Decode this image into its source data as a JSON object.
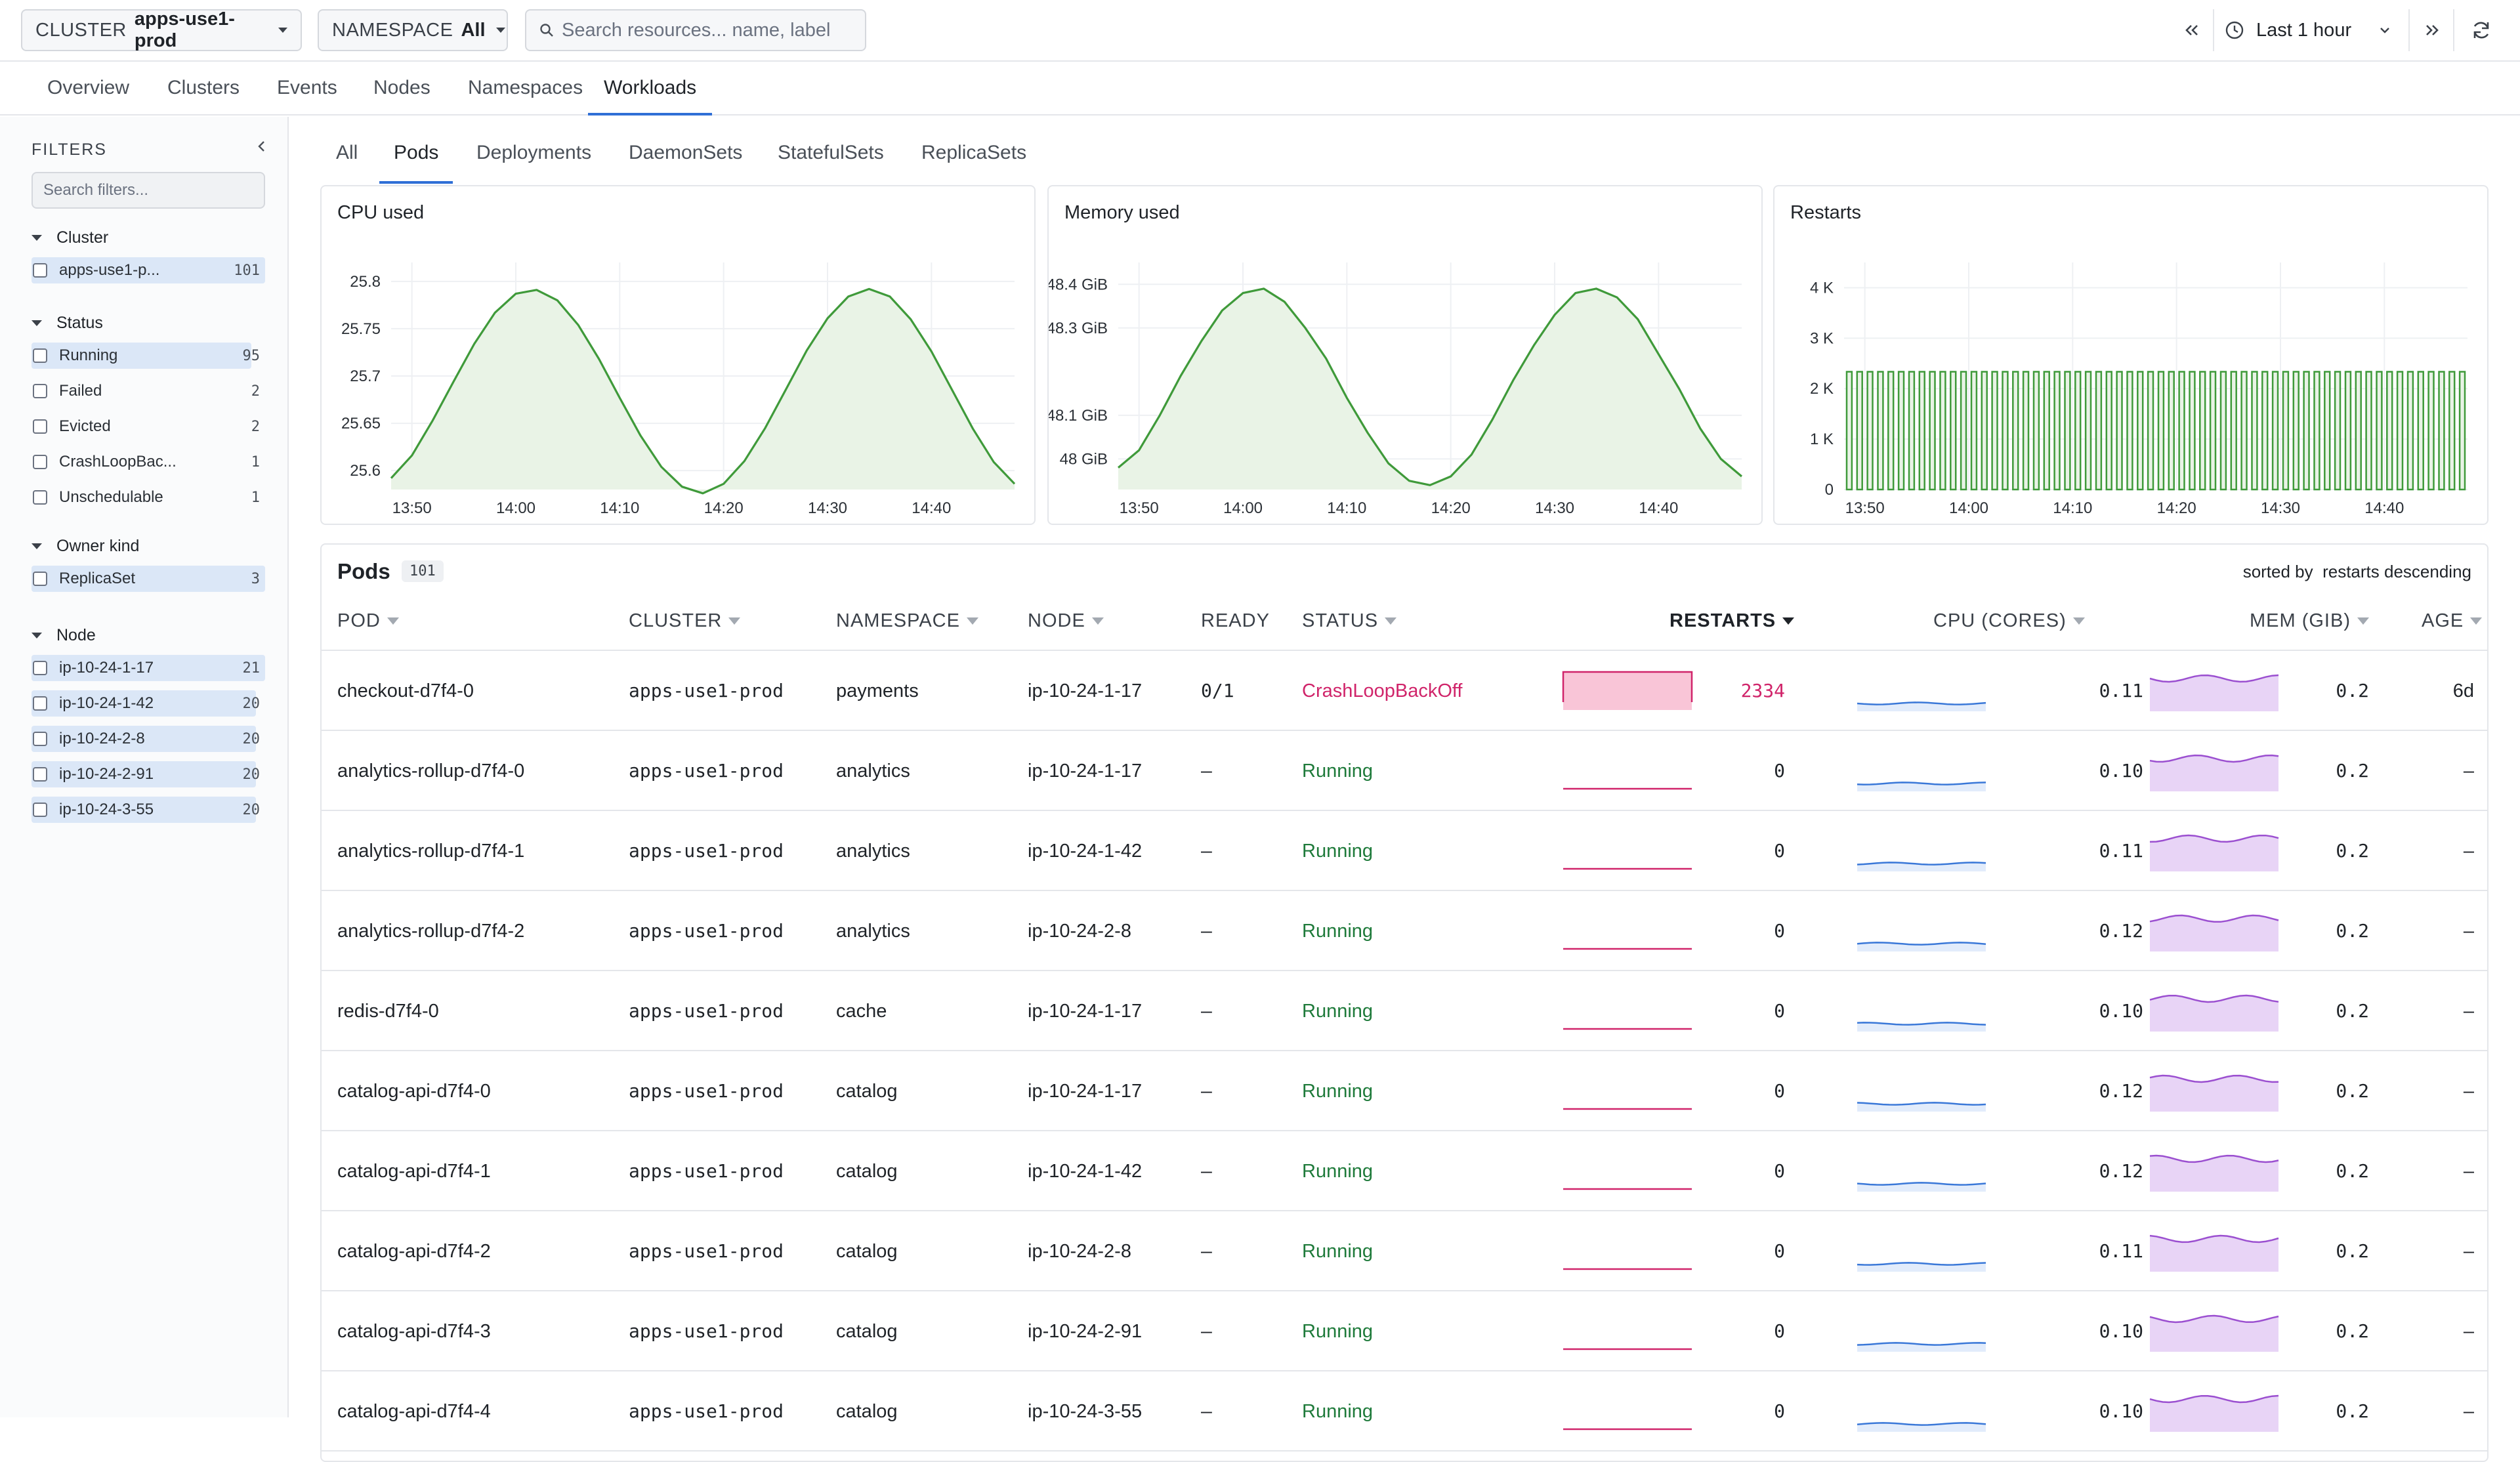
{
  "topbar": {
    "cluster_key": "CLUSTER",
    "cluster_value": "apps-use1-prod",
    "namespace_key": "NAMESPACE",
    "namespace_value": "All",
    "search_placeholder": "Search resources... name, label",
    "time_range": "Last 1 hour"
  },
  "nav": {
    "tabs": [
      "Overview",
      "Clusters",
      "Events",
      "Nodes",
      "Namespaces",
      "Workloads"
    ],
    "active": "Workloads"
  },
  "sidebar": {
    "title": "FILTERS",
    "search_placeholder": "Search filters...",
    "groups": [
      {
        "title": "Cluster",
        "items": [
          {
            "label": "apps-use1-p...",
            "count": "101",
            "fraction": 1.0
          }
        ]
      },
      {
        "title": "Status",
        "items": [
          {
            "label": "Running",
            "count": "95",
            "fraction": 0.94
          },
          {
            "label": "Failed",
            "count": "2",
            "fraction": 0.0
          },
          {
            "label": "Evicted",
            "count": "2",
            "fraction": 0.0
          },
          {
            "label": "CrashLoopBac...",
            "count": "1",
            "fraction": 0.0
          },
          {
            "label": "Unschedulable",
            "count": "1",
            "fraction": 0.0
          }
        ]
      },
      {
        "title": "Owner kind",
        "items": [
          {
            "label": "ReplicaSet",
            "count": "3",
            "fraction": 1.0
          }
        ]
      },
      {
        "title": "Node",
        "items": [
          {
            "label": "ip-10-24-1-17",
            "count": "21",
            "fraction": 1.0
          },
          {
            "label": "ip-10-24-1-42",
            "count": "20",
            "fraction": 0.96
          },
          {
            "label": "ip-10-24-2-8",
            "count": "20",
            "fraction": 0.96
          },
          {
            "label": "ip-10-24-2-91",
            "count": "20",
            "fraction": 0.96
          },
          {
            "label": "ip-10-24-3-55",
            "count": "20",
            "fraction": 0.96
          }
        ]
      }
    ]
  },
  "subtabs": {
    "items": [
      "All",
      "Pods",
      "Deployments",
      "DaemonSets",
      "StatefulSets",
      "ReplicaSets"
    ],
    "active": "Pods"
  },
  "chart_data": [
    {
      "type": "area",
      "title": "CPU used",
      "x_ticks": [
        "13:50",
        "14:00",
        "14:10",
        "14:20",
        "14:30",
        "14:40"
      ],
      "y_ticks": [
        "25.6",
        "25.65",
        "25.7",
        "25.75",
        "25.8"
      ],
      "ylim": [
        25.58,
        25.82
      ],
      "x": [
        "13:48",
        "13:50",
        "13:52",
        "13:54",
        "13:56",
        "13:58",
        "14:00",
        "14:02",
        "14:04",
        "14:06",
        "14:08",
        "14:10",
        "14:12",
        "14:14",
        "14:16",
        "14:18",
        "14:20",
        "14:22",
        "14:24",
        "14:26",
        "14:28",
        "14:30",
        "14:32",
        "14:34",
        "14:36",
        "14:38",
        "14:40",
        "14:42",
        "14:44",
        "14:46",
        "14:48"
      ],
      "values": [
        25.592,
        25.616,
        25.653,
        25.694,
        25.734,
        25.767,
        25.787,
        25.791,
        25.78,
        25.754,
        25.718,
        25.677,
        25.637,
        25.604,
        25.583,
        25.576,
        25.586,
        25.61,
        25.645,
        25.686,
        25.727,
        25.761,
        25.784,
        25.792,
        25.784,
        25.76,
        25.726,
        25.685,
        25.644,
        25.609,
        25.586
      ],
      "color": "#3f9a3a",
      "grid": true
    },
    {
      "type": "area",
      "title": "Memory used",
      "x_ticks": [
        "13:50",
        "14:00",
        "14:10",
        "14:20",
        "14:30",
        "14:40"
      ],
      "y_ticks": [
        "48 GiB",
        "48.1 GiB",
        "48.3 GiB",
        "48.4 GiB"
      ],
      "ylim": [
        47.93,
        48.45
      ],
      "x": [
        "13:48",
        "13:50",
        "13:52",
        "13:54",
        "13:56",
        "13:58",
        "14:00",
        "14:02",
        "14:04",
        "14:06",
        "14:08",
        "14:10",
        "14:12",
        "14:14",
        "14:16",
        "14:18",
        "14:20",
        "14:22",
        "14:24",
        "14:26",
        "14:28",
        "14:30",
        "14:32",
        "14:34",
        "14:36",
        "14:38",
        "14:40",
        "14:42",
        "14:44",
        "14:46",
        "14:48"
      ],
      "values": [
        47.98,
        48.02,
        48.1,
        48.19,
        48.27,
        48.34,
        48.38,
        48.39,
        48.36,
        48.3,
        48.23,
        48.14,
        48.06,
        47.99,
        47.95,
        47.94,
        47.96,
        48.01,
        48.09,
        48.18,
        48.26,
        48.33,
        48.38,
        48.39,
        48.37,
        48.32,
        48.24,
        48.16,
        48.07,
        48.0,
        47.96
      ],
      "color": "#3f9a3a",
      "grid": true
    },
    {
      "type": "bar",
      "title": "Restarts",
      "x_ticks": [
        "13:50",
        "14:00",
        "14:10",
        "14:20",
        "14:30",
        "14:40"
      ],
      "y_ticks": [
        "0",
        "1 K",
        "2 K",
        "3 K",
        "4 K"
      ],
      "ylim": [
        0,
        4500
      ],
      "bar_count": 60,
      "value_per_bar": 2334,
      "color": "#3f9a3a",
      "grid": true
    }
  ],
  "pods": {
    "title": "Pods",
    "count": "101",
    "sorted_prefix": "sorted by",
    "sorted_value": "restarts descending",
    "columns": [
      "POD",
      "CLUSTER",
      "NAMESPACE",
      "NODE",
      "READY",
      "STATUS",
      "RESTARTS",
      "CPU (CORES)",
      "MEM (GIB)",
      "AGE"
    ],
    "rows": [
      {
        "pod": "checkout-d7f4-0",
        "cluster": "apps-use1-prod",
        "namespace": "payments",
        "node": "ip-10-24-1-17",
        "ready": "0/1",
        "status": "CrashLoopBackOff",
        "restarts": "2334",
        "cpu": "0.11",
        "mem": "0.2",
        "age": "6d"
      },
      {
        "pod": "analytics-rollup-d7f4-0",
        "cluster": "apps-use1-prod",
        "namespace": "analytics",
        "node": "ip-10-24-1-17",
        "ready": "–",
        "status": "Running",
        "restarts": "0",
        "cpu": "0.10",
        "mem": "0.2",
        "age": "–"
      },
      {
        "pod": "analytics-rollup-d7f4-1",
        "cluster": "apps-use1-prod",
        "namespace": "analytics",
        "node": "ip-10-24-1-42",
        "ready": "–",
        "status": "Running",
        "restarts": "0",
        "cpu": "0.11",
        "mem": "0.2",
        "age": "–"
      },
      {
        "pod": "analytics-rollup-d7f4-2",
        "cluster": "apps-use1-prod",
        "namespace": "analytics",
        "node": "ip-10-24-2-8",
        "ready": "–",
        "status": "Running",
        "restarts": "0",
        "cpu": "0.12",
        "mem": "0.2",
        "age": "–"
      },
      {
        "pod": "redis-d7f4-0",
        "cluster": "apps-use1-prod",
        "namespace": "cache",
        "node": "ip-10-24-1-17",
        "ready": "–",
        "status": "Running",
        "restarts": "0",
        "cpu": "0.10",
        "mem": "0.2",
        "age": "–"
      },
      {
        "pod": "catalog-api-d7f4-0",
        "cluster": "apps-use1-prod",
        "namespace": "catalog",
        "node": "ip-10-24-1-17",
        "ready": "–",
        "status": "Running",
        "restarts": "0",
        "cpu": "0.12",
        "mem": "0.2",
        "age": "–"
      },
      {
        "pod": "catalog-api-d7f4-1",
        "cluster": "apps-use1-prod",
        "namespace": "catalog",
        "node": "ip-10-24-1-42",
        "ready": "–",
        "status": "Running",
        "restarts": "0",
        "cpu": "0.12",
        "mem": "0.2",
        "age": "–"
      },
      {
        "pod": "catalog-api-d7f4-2",
        "cluster": "apps-use1-prod",
        "namespace": "catalog",
        "node": "ip-10-24-2-8",
        "ready": "–",
        "status": "Running",
        "restarts": "0",
        "cpu": "0.11",
        "mem": "0.2",
        "age": "–"
      },
      {
        "pod": "catalog-api-d7f4-3",
        "cluster": "apps-use1-prod",
        "namespace": "catalog",
        "node": "ip-10-24-2-91",
        "ready": "–",
        "status": "Running",
        "restarts": "0",
        "cpu": "0.10",
        "mem": "0.2",
        "age": "–"
      },
      {
        "pod": "catalog-api-d7f4-4",
        "cluster": "apps-use1-prod",
        "namespace": "catalog",
        "node": "ip-10-24-3-55",
        "ready": "–",
        "status": "Running",
        "restarts": "0",
        "cpu": "0.10",
        "mem": "0.2",
        "age": "–"
      }
    ]
  },
  "colors": {
    "accent": "#2f6fd6",
    "running": "#1e7a3a",
    "crash": "#d0246a",
    "cpu_spark": "#3a78d8",
    "mem_spark": "#9b4fd0",
    "restart_spark": "#d0246a",
    "chart_line": "#3f9a3a"
  },
  "icons": {
    "search": "search-icon",
    "clock": "clock-icon",
    "refresh": "refresh-icon",
    "prev": "chevrons-left-icon",
    "next": "chevrons-right-icon",
    "collapse": "chevron-left-icon"
  }
}
